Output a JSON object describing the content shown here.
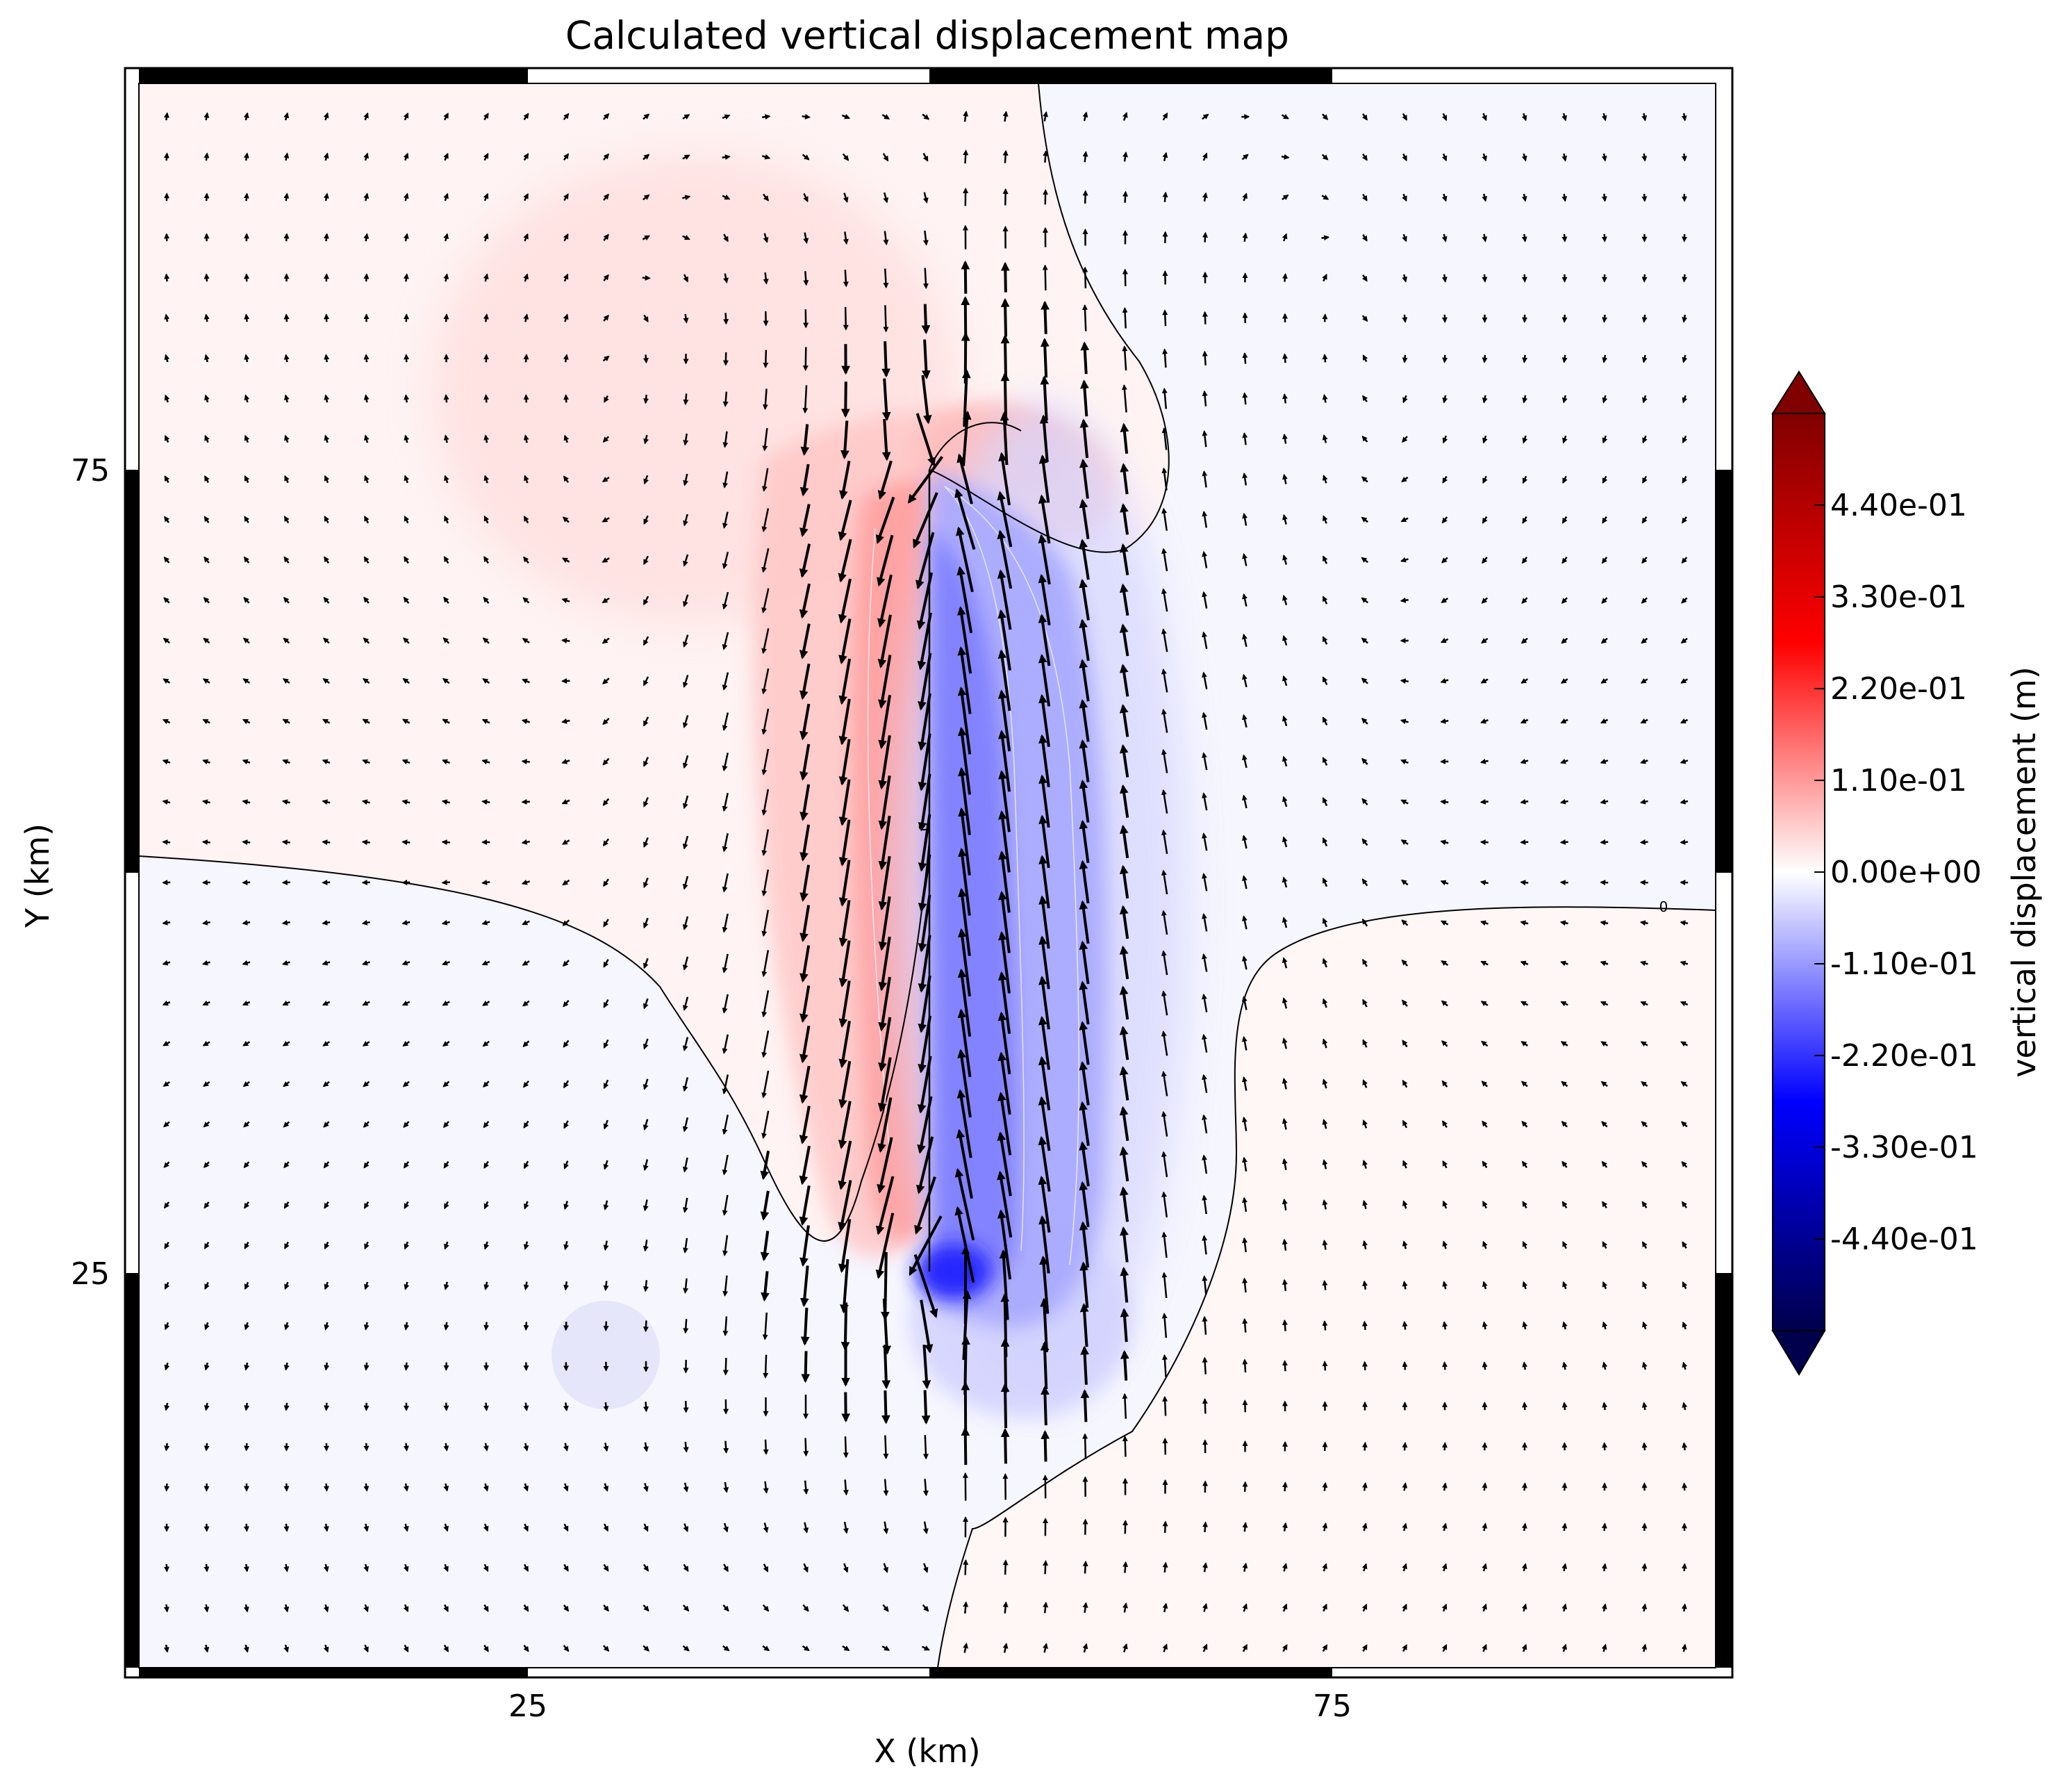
{
  "chart_data": {
    "type": "heatmap",
    "title": "Calculated vertical displacement map",
    "xlabel": "X (km)",
    "ylabel": "Y (km)",
    "xlim": [
      0,
      100
    ],
    "ylim": [
      0,
      100
    ],
    "xticks": [
      {
        "value": 25,
        "label": "25"
      },
      {
        "value": 75,
        "label": "75"
      }
    ],
    "yticks": [
      {
        "value": 75,
        "label": "75"
      },
      {
        "value": 25,
        "label": "25"
      }
    ],
    "contour_labels": [
      "0",
      "0"
    ],
    "fault_trace": {
      "x": [
        50,
        50
      ],
      "y": [
        25,
        75
      ]
    },
    "colorbar": {
      "label": "vertical displacement (m)",
      "colormap": "seismic",
      "range": [
        -0.55,
        0.55
      ],
      "extend": "both",
      "ticks": [
        {
          "value": 0.44,
          "label": "4.40e-01"
        },
        {
          "value": 0.33,
          "label": "3.30e-01"
        },
        {
          "value": 0.22,
          "label": "2.20e-01"
        },
        {
          "value": 0.11,
          "label": "1.10e-01"
        },
        {
          "value": 0.0,
          "label": "0.00e+00"
        },
        {
          "value": -0.11,
          "label": "-1.10e-01"
        },
        {
          "value": -0.22,
          "label": "-2.20e-01"
        },
        {
          "value": -0.33,
          "label": "-3.30e-01"
        },
        {
          "value": -0.44,
          "label": "-4.40e-01"
        }
      ],
      "colors": {
        "low": "#00004c",
        "mid": "#ffffff",
        "high": "#800000"
      }
    }
  }
}
